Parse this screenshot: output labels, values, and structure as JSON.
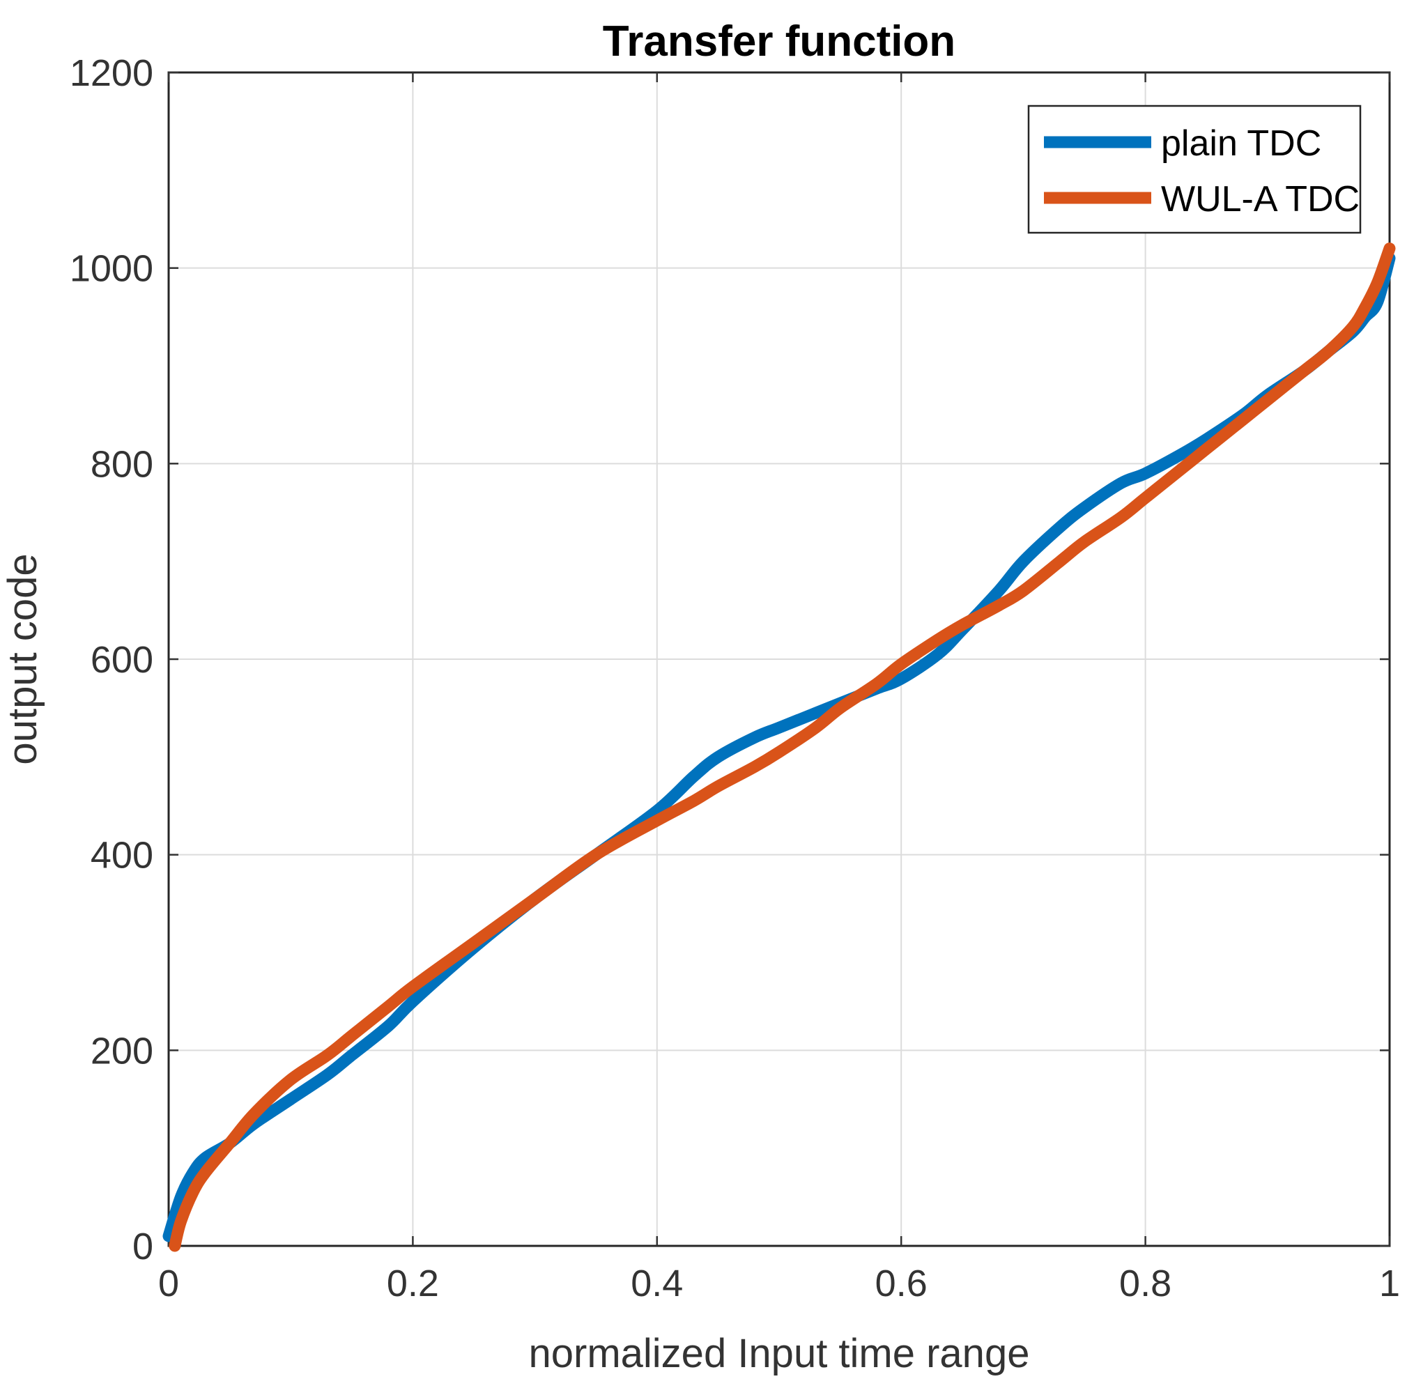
{
  "chart_data": {
    "type": "line",
    "title": "Transfer function",
    "xlabel": "normalized Input time range",
    "ylabel": "output code",
    "xlim": [
      0,
      1
    ],
    "ylim": [
      0,
      1200
    ],
    "xticks": [
      0,
      0.2,
      0.4,
      0.6,
      0.8,
      1
    ],
    "xtick_labels": [
      "0",
      "0.2",
      "0.4",
      "0.6",
      "0.8",
      "1"
    ],
    "yticks": [
      0,
      200,
      400,
      600,
      800,
      1000,
      1200
    ],
    "ytick_labels": [
      "0",
      "200",
      "400",
      "600",
      "800",
      "1000",
      "1200"
    ],
    "grid": true,
    "legend_position": "top-right",
    "series": [
      {
        "name": "plain TDC",
        "color": "#0072BD",
        "x": [
          0,
          0.01,
          0.02,
          0.03,
          0.05,
          0.07,
          0.1,
          0.13,
          0.15,
          0.18,
          0.2,
          0.25,
          0.3,
          0.35,
          0.4,
          0.43,
          0.45,
          0.48,
          0.5,
          0.53,
          0.55,
          0.58,
          0.6,
          0.63,
          0.65,
          0.68,
          0.7,
          0.73,
          0.75,
          0.78,
          0.8,
          0.83,
          0.85,
          0.88,
          0.9,
          0.93,
          0.95,
          0.97,
          0.98,
          0.99,
          1.0
        ],
        "y": [
          10,
          50,
          75,
          90,
          105,
          125,
          150,
          175,
          195,
          225,
          250,
          305,
          355,
          400,
          445,
          480,
          500,
          520,
          530,
          545,
          555,
          570,
          580,
          605,
          630,
          670,
          700,
          735,
          755,
          780,
          790,
          810,
          825,
          850,
          870,
          895,
          915,
          935,
          950,
          965,
          1010
        ]
      },
      {
        "name": "WUL-A TDC",
        "color": "#D95319",
        "x": [
          0.005,
          0.01,
          0.02,
          0.03,
          0.05,
          0.07,
          0.1,
          0.13,
          0.15,
          0.18,
          0.2,
          0.25,
          0.3,
          0.35,
          0.4,
          0.43,
          0.45,
          0.48,
          0.5,
          0.53,
          0.55,
          0.58,
          0.6,
          0.63,
          0.65,
          0.68,
          0.7,
          0.73,
          0.75,
          0.78,
          0.8,
          0.83,
          0.85,
          0.88,
          0.9,
          0.93,
          0.95,
          0.97,
          0.98,
          0.99,
          1.0
        ],
        "y": [
          0,
          25,
          55,
          75,
          105,
          135,
          170,
          195,
          215,
          245,
          265,
          310,
          355,
          400,
          435,
          455,
          470,
          490,
          505,
          530,
          550,
          575,
          595,
          620,
          635,
          655,
          670,
          700,
          720,
          745,
          765,
          795,
          815,
          845,
          865,
          895,
          915,
          940,
          960,
          985,
          1020
        ]
      }
    ]
  }
}
